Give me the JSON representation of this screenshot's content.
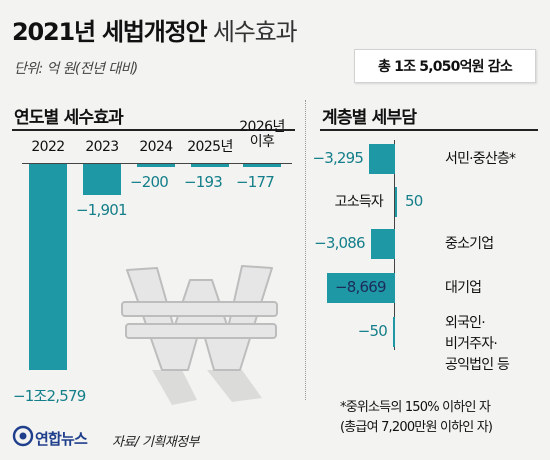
{
  "title": {
    "main": "2021년 세법개정안",
    "sub": "세수효과"
  },
  "unit": "단위: 억 원(전년 대비)",
  "total_badge": "총 1조 5,050억원 감소",
  "source": "자료/ 기획재정부",
  "logo": "연합뉴스",
  "footnote": {
    "line1": "*중위소득의 150% 이하인 자",
    "line2": "(총급여 7,200만원 이하인 자)"
  },
  "colors": {
    "bar": "#1e98a4",
    "value_label": "#147f8a"
  },
  "icons": {
    "left_graphic": "won-sign-icon",
    "logo": "yonhap-logo-icon"
  },
  "chart_data": [
    {
      "type": "bar",
      "title": "연도별 세수효과",
      "orientation": "vertical",
      "categories": [
        [
          "2022"
        ],
        [
          "2023"
        ],
        [
          "2024"
        ],
        [
          "2025년"
        ],
        [
          "2026년",
          "이후"
        ]
      ],
      "values": [
        -12579,
        -1901,
        -200,
        -193,
        -177
      ],
      "value_labels": [
        "−1조2,579",
        "−1,901",
        "−200",
        "−193",
        "−177"
      ],
      "ylim": [
        -12579,
        0
      ]
    },
    {
      "type": "bar",
      "title": "계층별 세부담",
      "orientation": "horizontal",
      "categories": [
        [
          "서민·중산층*"
        ],
        [
          "고소득자"
        ],
        [
          "중소기업"
        ],
        [
          "대기업"
        ],
        [
          "외국인·",
          "비거주자·",
          "공익법인 등"
        ]
      ],
      "values": [
        -3295,
        50,
        -3086,
        -8669,
        -50
      ],
      "value_labels": [
        "−3,295",
        "50",
        "−3,086",
        "−8,669",
        "−50"
      ],
      "xlim": [
        -8669,
        50
      ]
    }
  ]
}
